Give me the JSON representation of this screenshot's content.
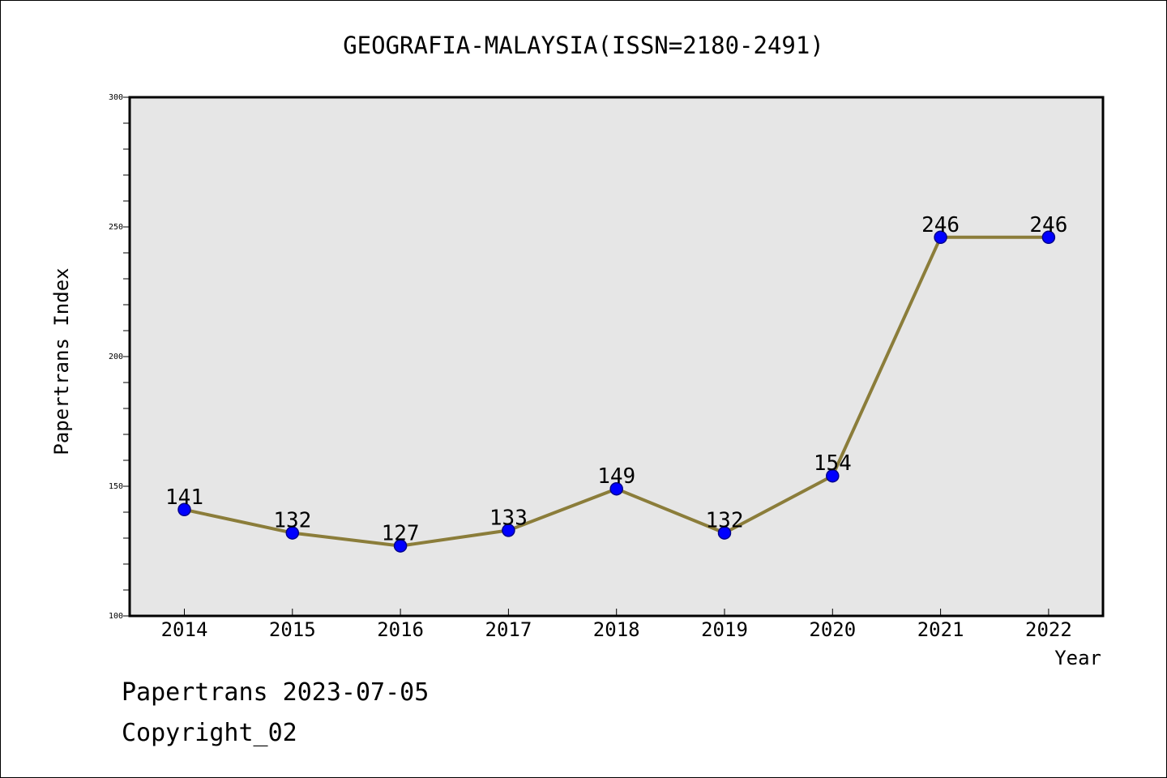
{
  "colors": {
    "plot_background": "#e6e6e6",
    "line": "#8b7d3a",
    "marker": "#0000ff",
    "marker_edge": "#00008b",
    "axis": "#000000"
  },
  "chart_data": {
    "type": "line",
    "title": "GEOGRAFIA-MALAYSIA(ISSN=2180-2491)",
    "xlabel": "Year",
    "ylabel": "Papertrans Index",
    "x": [
      "2014",
      "2015",
      "2016",
      "2017",
      "2018",
      "2019",
      "2020",
      "2021",
      "2022"
    ],
    "series": [
      {
        "values": [
          141,
          132,
          127,
          133,
          149,
          132,
          154,
          246,
          246
        ]
      }
    ],
    "data_labels": [
      "141",
      "132",
      "127",
      "133",
      "149",
      "132",
      "154",
      "246",
      "246"
    ],
    "ylim": [
      100,
      300
    ],
    "yticks": [
      "100",
      "150",
      "200",
      "250",
      "300"
    ],
    "grid": false,
    "legend": "none"
  },
  "footer": {
    "line1": "Papertrans 2023-07-05",
    "line2": "Copyright_02"
  }
}
